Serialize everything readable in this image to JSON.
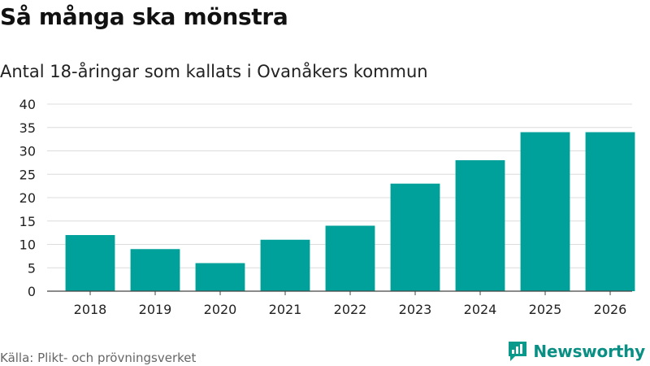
{
  "title": "Så många ska mönstra",
  "subtitle": "Antal 18-åringar som kallats i Ovanåkers kommun",
  "source": "Källa: Plikt- och prövningsverket",
  "brand": {
    "name": "Newsworthy",
    "icon": "newsworthy-logo-icon",
    "color": "#0a9a8c"
  },
  "chart_data": {
    "type": "bar",
    "title": "Så många ska mönstra",
    "subtitle": "Antal 18-åringar som kallats i Ovanåkers kommun",
    "xlabel": "",
    "ylabel": "",
    "categories": [
      "2018",
      "2019",
      "2020",
      "2021",
      "2022",
      "2023",
      "2024",
      "2025",
      "2026"
    ],
    "values": [
      12,
      9,
      6,
      11,
      14,
      23,
      28,
      34,
      34
    ],
    "ylim": [
      0,
      40
    ],
    "yticks": [
      0,
      5,
      10,
      15,
      20,
      25,
      30,
      35,
      40
    ],
    "grid": true,
    "bar_color": "#00a19a",
    "grid_color": "#dcdcdc",
    "axis_color": "#444444"
  }
}
